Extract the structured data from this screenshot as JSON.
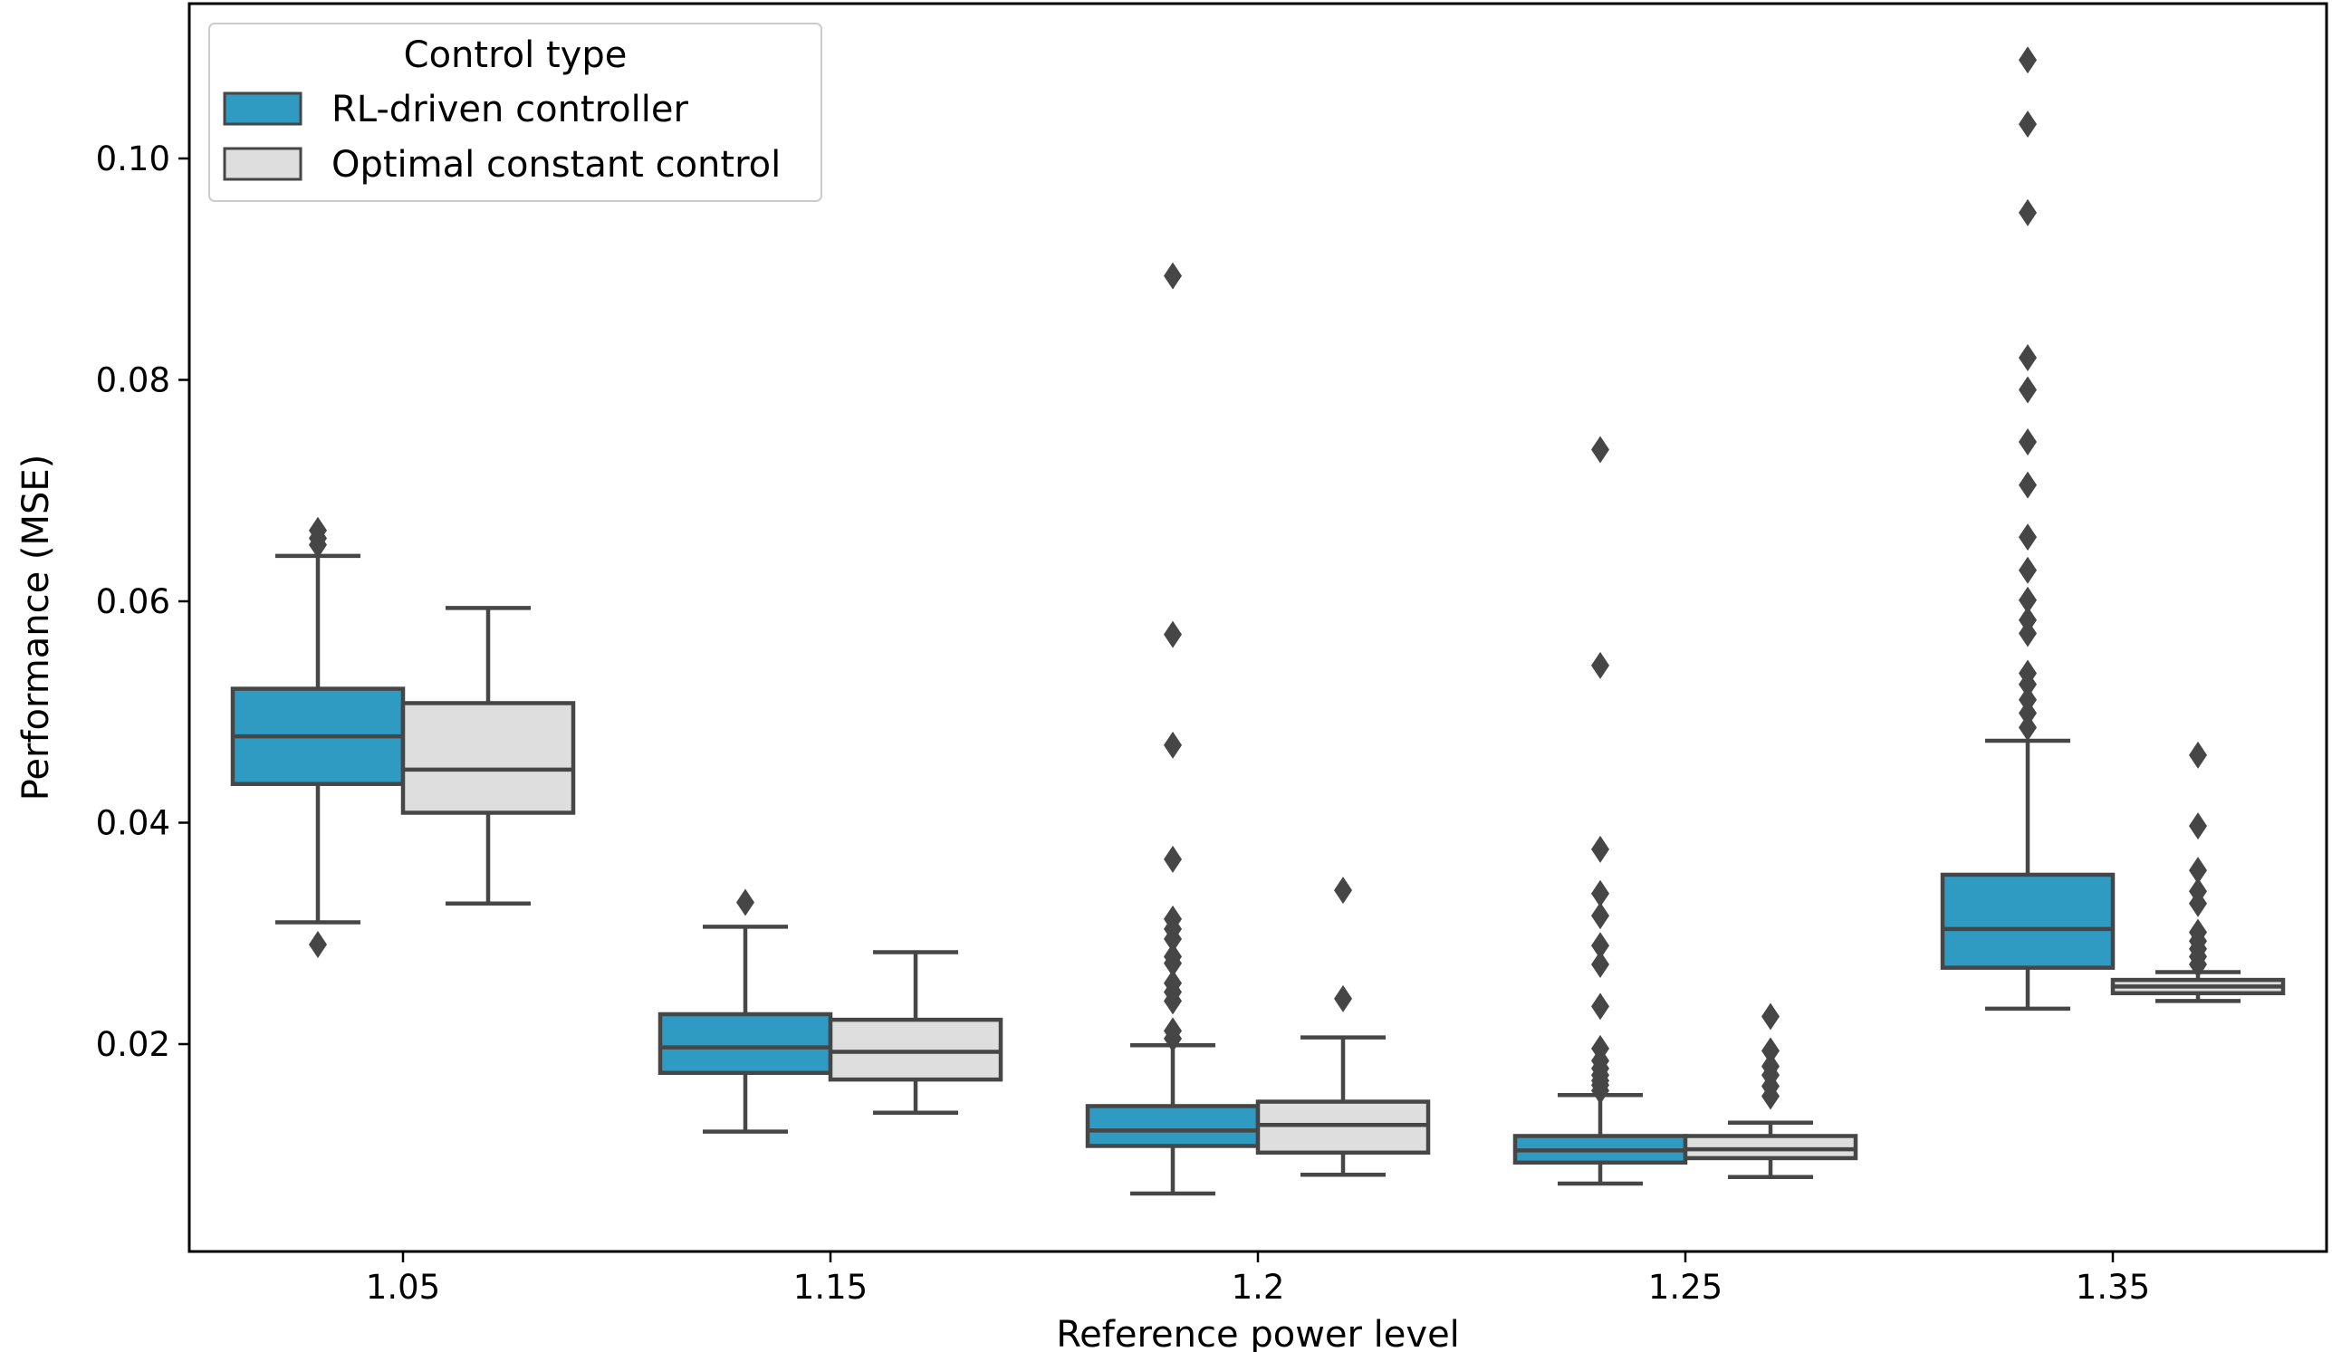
{
  "chart_data": {
    "type": "box",
    "title": "",
    "xlabel": "Reference power level",
    "ylabel": "Performance (MSE)",
    "ylim": [
      0.0015,
      0.114
    ],
    "yticks": [
      "0.02",
      "0.04",
      "0.06",
      "0.08",
      "0.10"
    ],
    "categories": [
      "1.05",
      "1.15",
      "1.2",
      "1.25",
      "1.35"
    ],
    "legend": {
      "title": "Control type",
      "position": "upper-left"
    },
    "colors": {
      "rl": "#2f9ac2",
      "optimal": "#dedede",
      "edge": "#464646"
    },
    "series": [
      {
        "name": "RL-driven controller",
        "boxes": [
          {
            "whislo": 0.031,
            "q1": 0.0435,
            "med": 0.0478,
            "q3": 0.0521,
            "whishi": 0.0641,
            "fliers": [
              0.029,
              0.0651,
              0.0657,
              0.0664
            ]
          },
          {
            "whislo": 0.0121,
            "q1": 0.0174,
            "med": 0.0197,
            "q3": 0.0227,
            "whishi": 0.0306,
            "fliers": [
              0.0328
            ]
          },
          {
            "whislo": 0.0065,
            "q1": 0.0108,
            "med": 0.0122,
            "q3": 0.0144,
            "whishi": 0.0199,
            "fliers": [
              0.0205,
              0.0212,
              0.0239,
              0.0247,
              0.0255,
              0.0273,
              0.0279,
              0.0295,
              0.0304,
              0.0313,
              0.0367,
              0.047,
              0.057,
              0.0894
            ]
          },
          {
            "whislo": 0.0074,
            "q1": 0.0093,
            "med": 0.0104,
            "q3": 0.0117,
            "whishi": 0.0154,
            "fliers": [
              0.0158,
              0.0163,
              0.0167,
              0.0172,
              0.0178,
              0.0185,
              0.0196,
              0.0234,
              0.0272,
              0.0289,
              0.0316,
              0.0336,
              0.0376,
              0.0542,
              0.0737
            ]
          },
          {
            "whislo": 0.0232,
            "q1": 0.0269,
            "med": 0.0304,
            "q3": 0.0353,
            "whishi": 0.0474,
            "fliers": [
              0.0486,
              0.0499,
              0.0511,
              0.0525,
              0.0535,
              0.0571,
              0.0583,
              0.0601,
              0.0628,
              0.0658,
              0.0705,
              0.0744,
              0.0791,
              0.082,
              0.0951,
              0.1031,
              0.1089
            ]
          }
        ]
      },
      {
        "name": "Optimal constant control",
        "boxes": [
          {
            "whislo": 0.0327,
            "q1": 0.0409,
            "med": 0.0448,
            "q3": 0.0508,
            "whishi": 0.0594,
            "fliers": []
          },
          {
            "whislo": 0.0138,
            "q1": 0.0168,
            "med": 0.0193,
            "q3": 0.0222,
            "whishi": 0.0283,
            "fliers": []
          },
          {
            "whislo": 0.0082,
            "q1": 0.0102,
            "med": 0.0127,
            "q3": 0.0148,
            "whishi": 0.0206,
            "fliers": [
              0.0241,
              0.0339
            ]
          },
          {
            "whislo": 0.008,
            "q1": 0.0097,
            "med": 0.0105,
            "q3": 0.0117,
            "whishi": 0.0129,
            "fliers": [
              0.0153,
              0.0162,
              0.0172,
              0.018,
              0.0194,
              0.0225
            ]
          },
          {
            "whislo": 0.0239,
            "q1": 0.0246,
            "med": 0.0252,
            "q3": 0.0258,
            "whishi": 0.0265,
            "fliers": [
              0.0272,
              0.0279,
              0.0286,
              0.0293,
              0.0301,
              0.0327,
              0.0338,
              0.0357,
              0.0397,
              0.0461
            ]
          }
        ]
      }
    ]
  }
}
